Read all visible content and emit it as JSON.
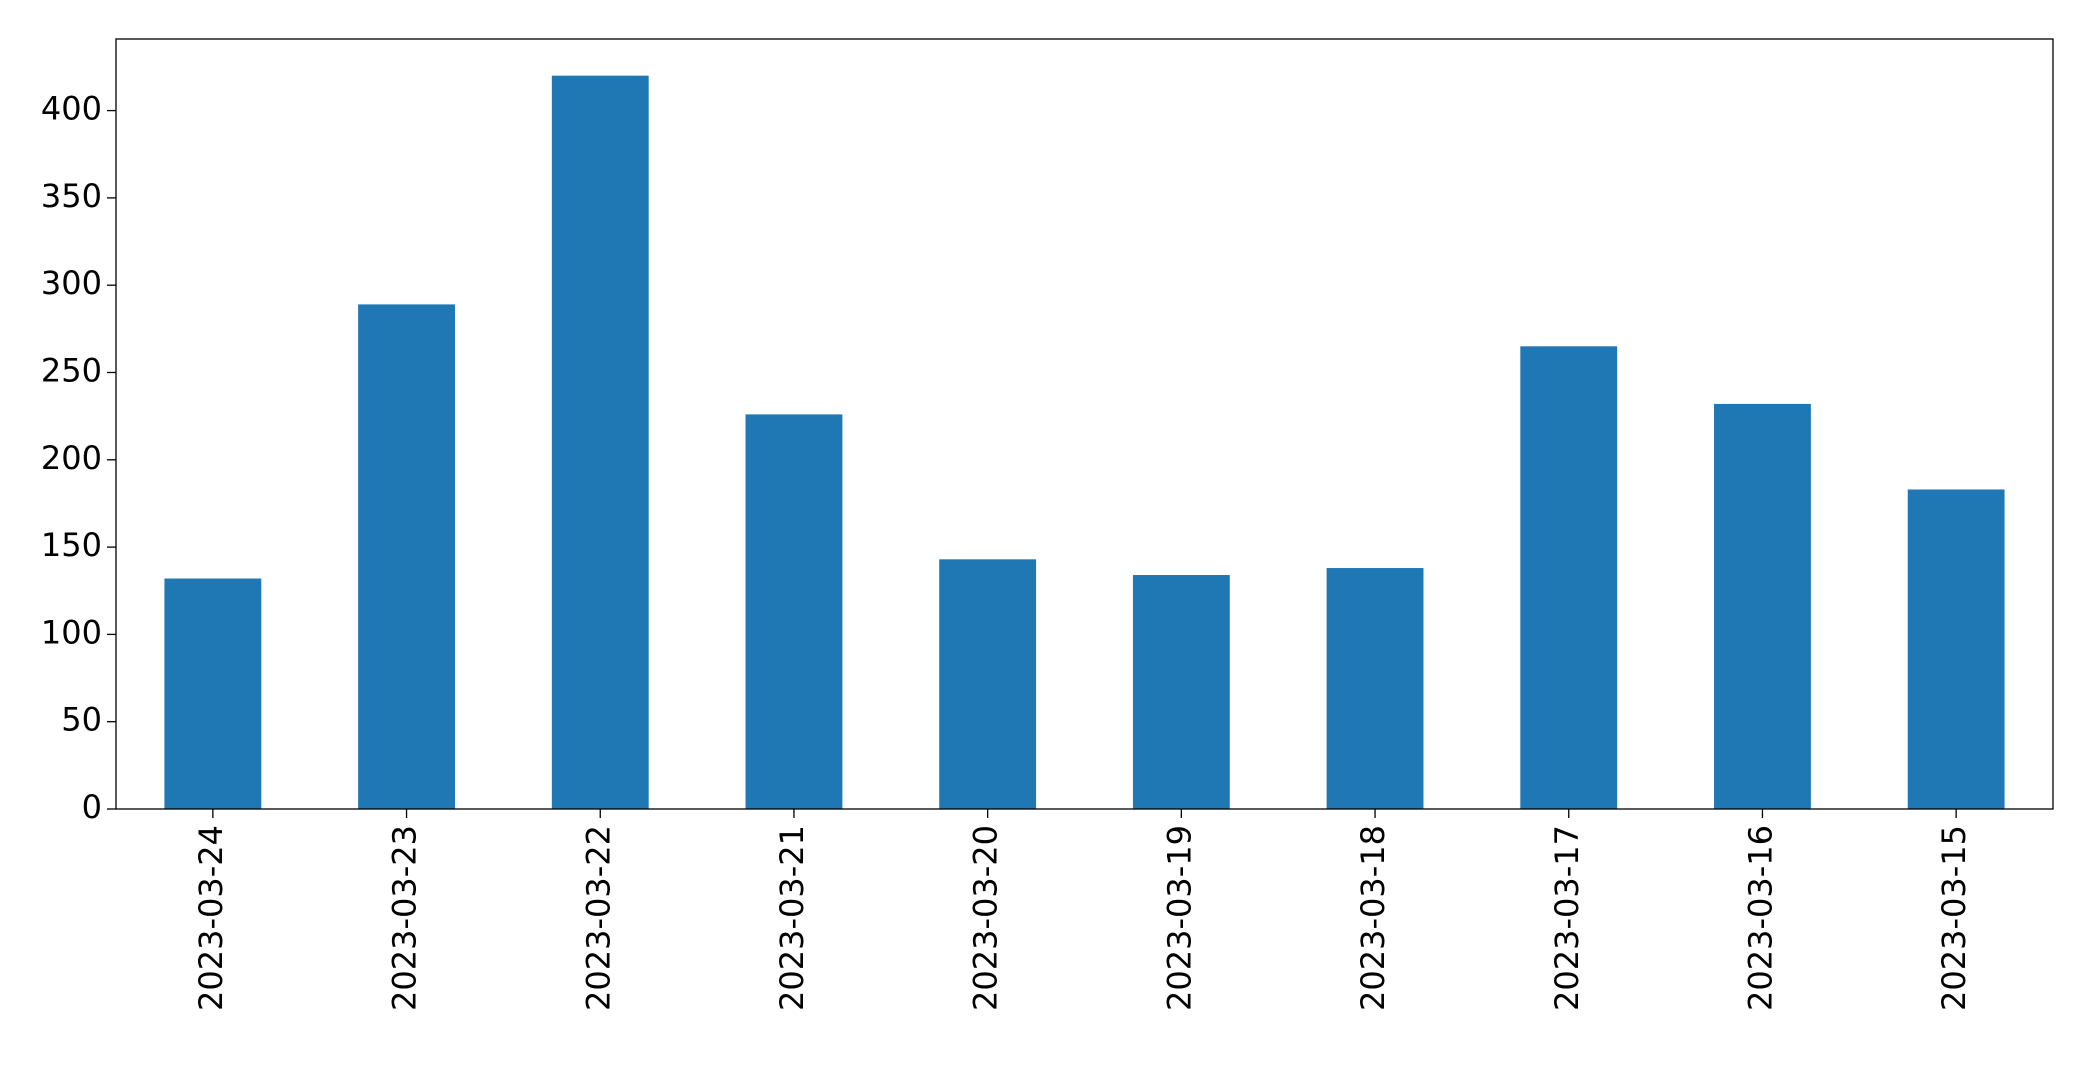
{
  "chart_data": {
    "type": "bar",
    "categories": [
      "2023-03-24",
      "2023-03-23",
      "2023-03-22",
      "2023-03-21",
      "2023-03-20",
      "2023-03-19",
      "2023-03-18",
      "2023-03-17",
      "2023-03-16",
      "2023-03-15"
    ],
    "values": [
      132,
      289,
      420,
      226,
      143,
      134,
      138,
      265,
      232,
      183
    ],
    "color": "#1f77b4",
    "ylim": [
      0,
      441
    ],
    "yticks": [
      0,
      50,
      100,
      150,
      200,
      250,
      300,
      350,
      400
    ],
    "grid": false
  }
}
